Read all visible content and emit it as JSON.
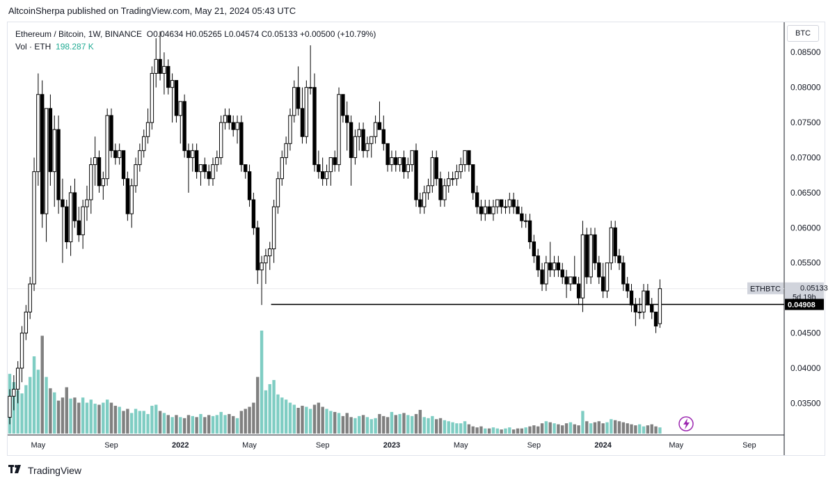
{
  "publisher": {
    "text": "AltcoinSherpa published on TradingView.com, May 21, 2024 05:43 UTC"
  },
  "legend": {
    "symbol": "Ethereum / Bitcoin, 1W, BINANCE",
    "open": "O0.04634",
    "high": "H0.05265",
    "low": "L0.04574",
    "close": "C0.05133",
    "change": "+0.00500 (+10.79%)",
    "vol_label": "Vol · ETH",
    "vol_value": "198.287 K"
  },
  "price_axis_title": "BTC",
  "footer": {
    "brand": "TradingView",
    "logo": "tradingview-logo-icon"
  },
  "colors": {
    "up_candle": "#ffffff",
    "down_candle": "#000000",
    "vol_up": "#7fcdc3",
    "vol_down": "#808080",
    "support_line": "#000000",
    "current_price_tag": "#d1d4dc",
    "support_price_tag": "#000000",
    "alert_icon": "#9c27b0"
  },
  "chart_data": {
    "type": "candlestick",
    "symbol_tag": "ETHBTC",
    "current_price": "0.05133",
    "countdown": "5d 19h",
    "support_level": 0.04908,
    "support_label": "0.04908",
    "support_start": "Jun 2022",
    "ylim": [
      0.03,
      0.088
    ],
    "y_ticks": [
      "0.03500",
      "0.04000",
      "0.04500",
      "0.05000",
      "0.05500",
      "0.06000",
      "0.06500",
      "0.07000",
      "0.07500",
      "0.08000",
      "0.08500"
    ],
    "x_ticks": [
      {
        "label": "May",
        "week": 7,
        "bold": false
      },
      {
        "label": "Sep",
        "week": 25,
        "bold": false
      },
      {
        "label": "2022",
        "week": 42,
        "bold": true
      },
      {
        "label": "May",
        "week": 59,
        "bold": false
      },
      {
        "label": "Sep",
        "week": 77,
        "bold": false
      },
      {
        "label": "2023",
        "week": 94,
        "bold": true
      },
      {
        "label": "May",
        "week": 111,
        "bold": false
      },
      {
        "label": "Sep",
        "week": 129,
        "bold": false
      },
      {
        "label": "2024",
        "week": 146,
        "bold": true
      },
      {
        "label": "May",
        "week": 164,
        "bold": false
      },
      {
        "label": "Sep",
        "week": 182,
        "bold": false
      }
    ],
    "candles": [
      {
        "o": 0.033,
        "h": 0.037,
        "l": 0.032,
        "c": 0.036
      },
      {
        "o": 0.036,
        "h": 0.039,
        "l": 0.034,
        "c": 0.037
      },
      {
        "o": 0.037,
        "h": 0.041,
        "l": 0.035,
        "c": 0.04
      },
      {
        "o": 0.04,
        "h": 0.046,
        "l": 0.038,
        "c": 0.045
      },
      {
        "o": 0.045,
        "h": 0.049,
        "l": 0.044,
        "c": 0.048
      },
      {
        "o": 0.048,
        "h": 0.053,
        "l": 0.047,
        "c": 0.052
      },
      {
        "o": 0.052,
        "h": 0.07,
        "l": 0.051,
        "c": 0.068
      },
      {
        "o": 0.068,
        "h": 0.082,
        "l": 0.066,
        "c": 0.079
      },
      {
        "o": 0.079,
        "h": 0.081,
        "l": 0.06,
        "c": 0.062
      },
      {
        "o": 0.062,
        "h": 0.077,
        "l": 0.058,
        "c": 0.077
      },
      {
        "o": 0.077,
        "h": 0.079,
        "l": 0.066,
        "c": 0.068
      },
      {
        "o": 0.068,
        "h": 0.076,
        "l": 0.063,
        "c": 0.074
      },
      {
        "o": 0.074,
        "h": 0.076,
        "l": 0.062,
        "c": 0.064
      },
      {
        "o": 0.064,
        "h": 0.067,
        "l": 0.055,
        "c": 0.063
      },
      {
        "o": 0.063,
        "h": 0.064,
        "l": 0.057,
        "c": 0.058
      },
      {
        "o": 0.058,
        "h": 0.066,
        "l": 0.056,
        "c": 0.065
      },
      {
        "o": 0.065,
        "h": 0.067,
        "l": 0.06,
        "c": 0.061
      },
      {
        "o": 0.061,
        "h": 0.063,
        "l": 0.058,
        "c": 0.059
      },
      {
        "o": 0.059,
        "h": 0.064,
        "l": 0.057,
        "c": 0.063
      },
      {
        "o": 0.063,
        "h": 0.066,
        "l": 0.061,
        "c": 0.064
      },
      {
        "o": 0.064,
        "h": 0.07,
        "l": 0.062,
        "c": 0.069
      },
      {
        "o": 0.069,
        "h": 0.073,
        "l": 0.066,
        "c": 0.07
      },
      {
        "o": 0.07,
        "h": 0.071,
        "l": 0.065,
        "c": 0.066
      },
      {
        "o": 0.066,
        "h": 0.068,
        "l": 0.064,
        "c": 0.067
      },
      {
        "o": 0.067,
        "h": 0.077,
        "l": 0.066,
        "c": 0.076
      },
      {
        "o": 0.076,
        "h": 0.077,
        "l": 0.07,
        "c": 0.071
      },
      {
        "o": 0.071,
        "h": 0.072,
        "l": 0.069,
        "c": 0.07
      },
      {
        "o": 0.07,
        "h": 0.072,
        "l": 0.069,
        "c": 0.071
      },
      {
        "o": 0.071,
        "h": 0.071,
        "l": 0.066,
        "c": 0.067
      },
      {
        "o": 0.067,
        "h": 0.068,
        "l": 0.061,
        "c": 0.062
      },
      {
        "o": 0.062,
        "h": 0.067,
        "l": 0.06,
        "c": 0.066
      },
      {
        "o": 0.066,
        "h": 0.07,
        "l": 0.065,
        "c": 0.069
      },
      {
        "o": 0.069,
        "h": 0.072,
        "l": 0.068,
        "c": 0.071
      },
      {
        "o": 0.071,
        "h": 0.074,
        "l": 0.07,
        "c": 0.073
      },
      {
        "o": 0.073,
        "h": 0.077,
        "l": 0.072,
        "c": 0.075
      },
      {
        "o": 0.075,
        "h": 0.083,
        "l": 0.074,
        "c": 0.082
      },
      {
        "o": 0.082,
        "h": 0.087,
        "l": 0.08,
        "c": 0.084
      },
      {
        "o": 0.084,
        "h": 0.088,
        "l": 0.081,
        "c": 0.082
      },
      {
        "o": 0.082,
        "h": 0.085,
        "l": 0.079,
        "c": 0.083
      },
      {
        "o": 0.083,
        "h": 0.084,
        "l": 0.079,
        "c": 0.08
      },
      {
        "o": 0.08,
        "h": 0.082,
        "l": 0.075,
        "c": 0.081
      },
      {
        "o": 0.081,
        "h": 0.081,
        "l": 0.075,
        "c": 0.076
      },
      {
        "o": 0.076,
        "h": 0.078,
        "l": 0.072,
        "c": 0.078
      },
      {
        "o": 0.078,
        "h": 0.079,
        "l": 0.07,
        "c": 0.071
      },
      {
        "o": 0.071,
        "h": 0.072,
        "l": 0.065,
        "c": 0.07
      },
      {
        "o": 0.07,
        "h": 0.072,
        "l": 0.068,
        "c": 0.071
      },
      {
        "o": 0.071,
        "h": 0.072,
        "l": 0.067,
        "c": 0.068
      },
      {
        "o": 0.068,
        "h": 0.069,
        "l": 0.066,
        "c": 0.069
      },
      {
        "o": 0.069,
        "h": 0.07,
        "l": 0.067,
        "c": 0.068
      },
      {
        "o": 0.068,
        "h": 0.069,
        "l": 0.066,
        "c": 0.067
      },
      {
        "o": 0.067,
        "h": 0.07,
        "l": 0.066,
        "c": 0.069
      },
      {
        "o": 0.069,
        "h": 0.071,
        "l": 0.068,
        "c": 0.07
      },
      {
        "o": 0.07,
        "h": 0.076,
        "l": 0.069,
        "c": 0.075
      },
      {
        "o": 0.075,
        "h": 0.077,
        "l": 0.074,
        "c": 0.076
      },
      {
        "o": 0.076,
        "h": 0.077,
        "l": 0.074,
        "c": 0.075
      },
      {
        "o": 0.075,
        "h": 0.076,
        "l": 0.073,
        "c": 0.074
      },
      {
        "o": 0.074,
        "h": 0.076,
        "l": 0.072,
        "c": 0.075
      },
      {
        "o": 0.075,
        "h": 0.076,
        "l": 0.068,
        "c": 0.069
      },
      {
        "o": 0.069,
        "h": 0.069,
        "l": 0.067,
        "c": 0.068
      },
      {
        "o": 0.068,
        "h": 0.069,
        "l": 0.063,
        "c": 0.064
      },
      {
        "o": 0.064,
        "h": 0.065,
        "l": 0.059,
        "c": 0.06
      },
      {
        "o": 0.06,
        "h": 0.061,
        "l": 0.052,
        "c": 0.054
      },
      {
        "o": 0.054,
        "h": 0.056,
        "l": 0.049,
        "c": 0.055
      },
      {
        "o": 0.055,
        "h": 0.057,
        "l": 0.052,
        "c": 0.056
      },
      {
        "o": 0.056,
        "h": 0.058,
        "l": 0.054,
        "c": 0.057
      },
      {
        "o": 0.057,
        "h": 0.064,
        "l": 0.055,
        "c": 0.063
      },
      {
        "o": 0.063,
        "h": 0.068,
        "l": 0.062,
        "c": 0.067
      },
      {
        "o": 0.067,
        "h": 0.071,
        "l": 0.066,
        "c": 0.07
      },
      {
        "o": 0.07,
        "h": 0.073,
        "l": 0.069,
        "c": 0.072
      },
      {
        "o": 0.072,
        "h": 0.077,
        "l": 0.071,
        "c": 0.076
      },
      {
        "o": 0.076,
        "h": 0.081,
        "l": 0.075,
        "c": 0.08
      },
      {
        "o": 0.08,
        "h": 0.083,
        "l": 0.076,
        "c": 0.077
      },
      {
        "o": 0.077,
        "h": 0.08,
        "l": 0.072,
        "c": 0.073
      },
      {
        "o": 0.073,
        "h": 0.081,
        "l": 0.072,
        "c": 0.08
      },
      {
        "o": 0.08,
        "h": 0.086,
        "l": 0.079,
        "c": 0.08
      },
      {
        "o": 0.08,
        "h": 0.082,
        "l": 0.068,
        "c": 0.069
      },
      {
        "o": 0.069,
        "h": 0.071,
        "l": 0.067,
        "c": 0.068
      },
      {
        "o": 0.068,
        "h": 0.07,
        "l": 0.066,
        "c": 0.067
      },
      {
        "o": 0.067,
        "h": 0.069,
        "l": 0.066,
        "c": 0.068
      },
      {
        "o": 0.068,
        "h": 0.07,
        "l": 0.066,
        "c": 0.07
      },
      {
        "o": 0.07,
        "h": 0.071,
        "l": 0.068,
        "c": 0.069
      },
      {
        "o": 0.069,
        "h": 0.08,
        "l": 0.068,
        "c": 0.079
      },
      {
        "o": 0.079,
        "h": 0.079,
        "l": 0.075,
        "c": 0.076
      },
      {
        "o": 0.076,
        "h": 0.078,
        "l": 0.071,
        "c": 0.075
      },
      {
        "o": 0.075,
        "h": 0.076,
        "l": 0.066,
        "c": 0.07
      },
      {
        "o": 0.07,
        "h": 0.074,
        "l": 0.069,
        "c": 0.073
      },
      {
        "o": 0.073,
        "h": 0.075,
        "l": 0.071,
        "c": 0.074
      },
      {
        "o": 0.074,
        "h": 0.075,
        "l": 0.07,
        "c": 0.071
      },
      {
        "o": 0.071,
        "h": 0.073,
        "l": 0.07,
        "c": 0.072
      },
      {
        "o": 0.072,
        "h": 0.073,
        "l": 0.07,
        "c": 0.073
      },
      {
        "o": 0.073,
        "h": 0.076,
        "l": 0.072,
        "c": 0.075
      },
      {
        "o": 0.075,
        "h": 0.078,
        "l": 0.074,
        "c": 0.074
      },
      {
        "o": 0.074,
        "h": 0.076,
        "l": 0.071,
        "c": 0.072
      },
      {
        "o": 0.072,
        "h": 0.072,
        "l": 0.068,
        "c": 0.069
      },
      {
        "o": 0.069,
        "h": 0.071,
        "l": 0.068,
        "c": 0.07
      },
      {
        "o": 0.07,
        "h": 0.071,
        "l": 0.068,
        "c": 0.069
      },
      {
        "o": 0.069,
        "h": 0.07,
        "l": 0.068,
        "c": 0.07
      },
      {
        "o": 0.07,
        "h": 0.071,
        "l": 0.067,
        "c": 0.068
      },
      {
        "o": 0.068,
        "h": 0.07,
        "l": 0.067,
        "c": 0.069
      },
      {
        "o": 0.069,
        "h": 0.071,
        "l": 0.068,
        "c": 0.071
      },
      {
        "o": 0.071,
        "h": 0.072,
        "l": 0.063,
        "c": 0.064
      },
      {
        "o": 0.064,
        "h": 0.065,
        "l": 0.062,
        "c": 0.063
      },
      {
        "o": 0.063,
        "h": 0.066,
        "l": 0.062,
        "c": 0.065
      },
      {
        "o": 0.065,
        "h": 0.067,
        "l": 0.064,
        "c": 0.066
      },
      {
        "o": 0.066,
        "h": 0.071,
        "l": 0.065,
        "c": 0.07
      },
      {
        "o": 0.07,
        "h": 0.071,
        "l": 0.066,
        "c": 0.067
      },
      {
        "o": 0.067,
        "h": 0.068,
        "l": 0.063,
        "c": 0.064
      },
      {
        "o": 0.064,
        "h": 0.067,
        "l": 0.063,
        "c": 0.066
      },
      {
        "o": 0.066,
        "h": 0.068,
        "l": 0.065,
        "c": 0.067
      },
      {
        "o": 0.067,
        "h": 0.068,
        "l": 0.066,
        "c": 0.067
      },
      {
        "o": 0.067,
        "h": 0.069,
        "l": 0.066,
        "c": 0.068
      },
      {
        "o": 0.068,
        "h": 0.07,
        "l": 0.067,
        "c": 0.069
      },
      {
        "o": 0.069,
        "h": 0.071,
        "l": 0.068,
        "c": 0.071
      },
      {
        "o": 0.071,
        "h": 0.071,
        "l": 0.068,
        "c": 0.069
      },
      {
        "o": 0.069,
        "h": 0.069,
        "l": 0.064,
        "c": 0.065
      },
      {
        "o": 0.065,
        "h": 0.066,
        "l": 0.062,
        "c": 0.063
      },
      {
        "o": 0.063,
        "h": 0.064,
        "l": 0.061,
        "c": 0.062
      },
      {
        "o": 0.062,
        "h": 0.064,
        "l": 0.061,
        "c": 0.063
      },
      {
        "o": 0.063,
        "h": 0.064,
        "l": 0.062,
        "c": 0.062
      },
      {
        "o": 0.062,
        "h": 0.064,
        "l": 0.061,
        "c": 0.063
      },
      {
        "o": 0.063,
        "h": 0.064,
        "l": 0.062,
        "c": 0.064
      },
      {
        "o": 0.064,
        "h": 0.064,
        "l": 0.062,
        "c": 0.063
      },
      {
        "o": 0.063,
        "h": 0.064,
        "l": 0.062,
        "c": 0.063
      },
      {
        "o": 0.063,
        "h": 0.065,
        "l": 0.062,
        "c": 0.064
      },
      {
        "o": 0.064,
        "h": 0.065,
        "l": 0.062,
        "c": 0.063
      },
      {
        "o": 0.063,
        "h": 0.064,
        "l": 0.062,
        "c": 0.062
      },
      {
        "o": 0.062,
        "h": 0.063,
        "l": 0.06,
        "c": 0.061
      },
      {
        "o": 0.061,
        "h": 0.062,
        "l": 0.06,
        "c": 0.061
      },
      {
        "o": 0.061,
        "h": 0.062,
        "l": 0.057,
        "c": 0.058
      },
      {
        "o": 0.058,
        "h": 0.059,
        "l": 0.055,
        "c": 0.056
      },
      {
        "o": 0.056,
        "h": 0.057,
        "l": 0.053,
        "c": 0.054
      },
      {
        "o": 0.054,
        "h": 0.055,
        "l": 0.051,
        "c": 0.052
      },
      {
        "o": 0.052,
        "h": 0.056,
        "l": 0.051,
        "c": 0.055
      },
      {
        "o": 0.055,
        "h": 0.058,
        "l": 0.053,
        "c": 0.054
      },
      {
        "o": 0.054,
        "h": 0.056,
        "l": 0.053,
        "c": 0.055
      },
      {
        "o": 0.055,
        "h": 0.056,
        "l": 0.053,
        "c": 0.054
      },
      {
        "o": 0.054,
        "h": 0.055,
        "l": 0.052,
        "c": 0.053
      },
      {
        "o": 0.053,
        "h": 0.054,
        "l": 0.05,
        "c": 0.052
      },
      {
        "o": 0.052,
        "h": 0.053,
        "l": 0.051,
        "c": 0.053
      },
      {
        "o": 0.053,
        "h": 0.056,
        "l": 0.052,
        "c": 0.052
      },
      {
        "o": 0.052,
        "h": 0.053,
        "l": 0.049,
        "c": 0.05
      },
      {
        "o": 0.05,
        "h": 0.061,
        "l": 0.048,
        "c": 0.059
      },
      {
        "o": 0.059,
        "h": 0.06,
        "l": 0.052,
        "c": 0.053
      },
      {
        "o": 0.053,
        "h": 0.06,
        "l": 0.052,
        "c": 0.059
      },
      {
        "o": 0.059,
        "h": 0.06,
        "l": 0.054,
        "c": 0.055
      },
      {
        "o": 0.055,
        "h": 0.056,
        "l": 0.052,
        "c": 0.053
      },
      {
        "o": 0.053,
        "h": 0.055,
        "l": 0.05,
        "c": 0.051
      },
      {
        "o": 0.051,
        "h": 0.055,
        "l": 0.05,
        "c": 0.055
      },
      {
        "o": 0.055,
        "h": 0.061,
        "l": 0.054,
        "c": 0.06
      },
      {
        "o": 0.06,
        "h": 0.061,
        "l": 0.055,
        "c": 0.056
      },
      {
        "o": 0.056,
        "h": 0.057,
        "l": 0.054,
        "c": 0.055
      },
      {
        "o": 0.055,
        "h": 0.056,
        "l": 0.051,
        "c": 0.052
      },
      {
        "o": 0.052,
        "h": 0.053,
        "l": 0.05,
        "c": 0.051
      },
      {
        "o": 0.051,
        "h": 0.052,
        "l": 0.048,
        "c": 0.049
      },
      {
        "o": 0.049,
        "h": 0.05,
        "l": 0.046,
        "c": 0.048
      },
      {
        "o": 0.048,
        "h": 0.05,
        "l": 0.047,
        "c": 0.048
      },
      {
        "o": 0.048,
        "h": 0.052,
        "l": 0.047,
        "c": 0.051
      },
      {
        "o": 0.051,
        "h": 0.052,
        "l": 0.049,
        "c": 0.049
      },
      {
        "o": 0.049,
        "h": 0.05,
        "l": 0.047,
        "c": 0.048
      },
      {
        "o": 0.048,
        "h": 0.048,
        "l": 0.045,
        "c": 0.046
      },
      {
        "o": 0.04634,
        "h": 0.05265,
        "l": 0.04574,
        "c": 0.05133
      }
    ],
    "volume_up_scale": [
      0.58,
      0.5,
      0.42,
      0.39,
      0.47,
      0.55,
      0.75,
      0.62,
      0.95,
      0.55,
      0.44,
      0.4,
      0.32,
      0.35,
      0.45,
      0.34,
      0.35,
      0.3,
      0.35,
      0.3,
      0.33,
      0.29,
      0.28,
      0.3,
      0.33,
      0.3,
      0.27,
      0.26,
      0.22,
      0.24,
      0.2,
      0.24,
      0.22,
      0.22,
      0.19,
      0.27,
      0.28,
      0.22,
      0.2,
      0.18,
      0.16,
      0.18,
      0.16,
      0.15,
      0.18,
      0.17,
      0.16,
      0.19,
      0.16,
      0.18,
      0.17,
      0.18,
      0.21,
      0.18,
      0.19,
      0.17,
      0.15,
      0.22,
      0.24,
      0.26,
      0.3,
      0.55,
      1.0,
      0.42,
      0.48,
      0.52,
      0.38,
      0.35,
      0.33,
      0.3,
      0.28,
      0.25,
      0.27,
      0.26,
      0.24,
      0.28,
      0.3,
      0.26,
      0.24,
      0.22,
      0.21,
      0.2,
      0.17,
      0.2,
      0.16,
      0.15,
      0.17,
      0.18,
      0.16,
      0.14,
      0.15,
      0.19,
      0.17,
      0.16,
      0.21,
      0.18,
      0.19,
      0.2,
      0.18,
      0.17,
      0.19,
      0.23,
      0.16,
      0.15,
      0.17,
      0.14,
      0.15,
      0.13,
      0.12,
      0.11,
      0.1,
      0.1,
      0.12,
      0.09,
      0.07,
      0.06,
      0.07,
      0.05,
      0.05,
      0.06,
      0.05,
      0.04,
      0.05,
      0.06,
      0.04,
      0.05,
      0.05,
      0.06,
      0.07,
      0.08,
      0.07,
      0.1,
      0.12,
      0.11,
      0.1,
      0.09,
      0.08,
      0.1,
      0.11,
      0.09,
      0.08,
      0.22,
      0.12,
      0.1,
      0.11,
      0.12,
      0.1,
      0.11,
      0.14,
      0.13,
      0.12,
      0.11,
      0.1,
      0.09,
      0.08,
      0.09,
      0.07,
      0.08,
      0.09,
      0.07,
      0.06,
      0.05
    ]
  }
}
